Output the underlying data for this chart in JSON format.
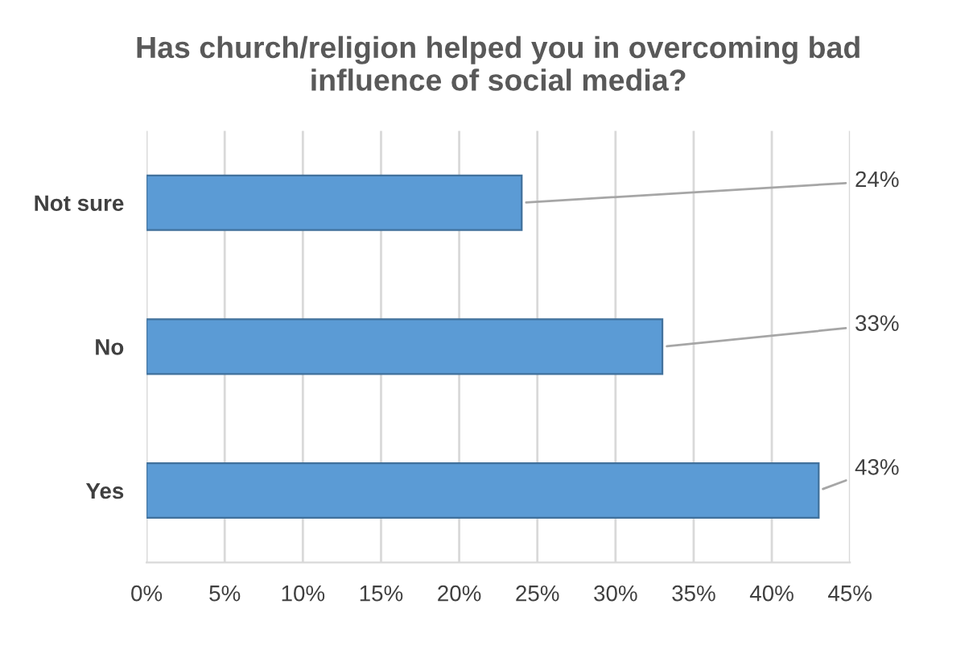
{
  "chart_data": {
    "type": "bar",
    "orientation": "horizontal",
    "title": "Has church/religion helped you in overcoming bad\ninfluence of social media?",
    "categories": [
      "Not sure",
      "No",
      "Yes"
    ],
    "values": [
      24,
      33,
      43
    ],
    "color": "#5b9bd5",
    "value_labels": [
      "24%",
      "33%",
      "43%"
    ],
    "xlim": [
      0,
      45
    ],
    "xticks": [
      {
        "value": 0,
        "label": "0%"
      },
      {
        "value": 5,
        "label": "5%"
      },
      {
        "value": 10,
        "label": "10%"
      },
      {
        "value": 15,
        "label": "15%"
      },
      {
        "value": 20,
        "label": "20%"
      },
      {
        "value": 25,
        "label": "25%"
      },
      {
        "value": 30,
        "label": "30%"
      },
      {
        "value": 35,
        "label": "35%"
      },
      {
        "value": 40,
        "label": "40%"
      },
      {
        "value": 45,
        "label": "45%"
      }
    ],
    "grid": "x",
    "legend": false
  }
}
